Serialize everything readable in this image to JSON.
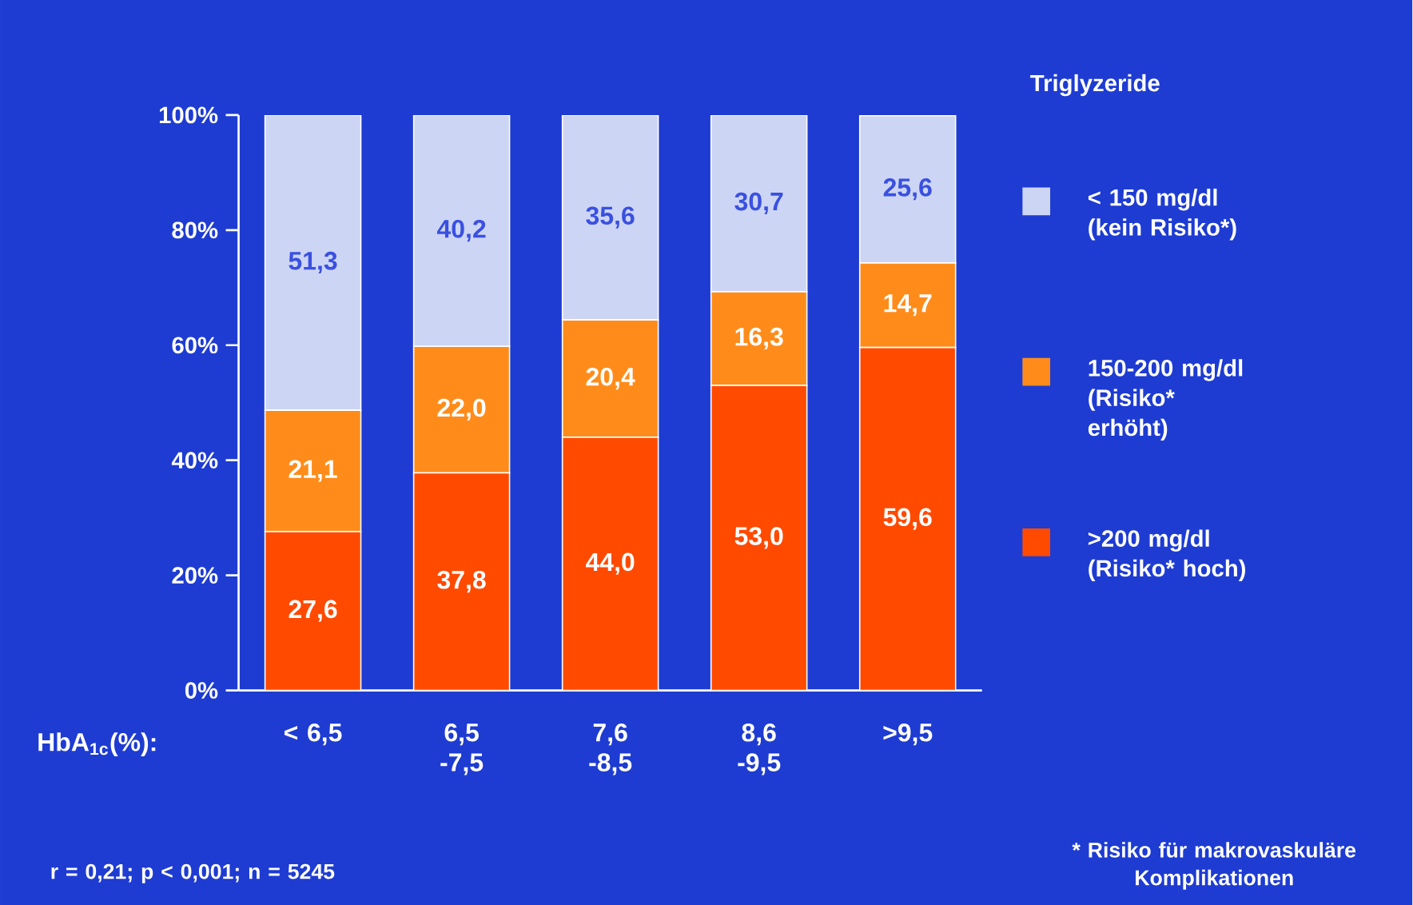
{
  "chart_data": {
    "type": "bar",
    "stacked": true,
    "xlabel": "HbA$_{1c}$(%):",
    "legend_title": "Triglyzeride",
    "legend": "right",
    "categories": [
      "< 6,5",
      "6,5 -7,5",
      "7,6 -8,5",
      "8,6 -9,5",
      ">9,5"
    ],
    "series": [
      {
        "name": ">200 mg/dl (Risiko* hoch)",
        "color": "#ff4a00",
        "values": [
          27.6,
          37.8,
          44.0,
          53.0,
          59.6
        ],
        "value_labels": [
          "27,6",
          "37,8",
          "44,0",
          "53,0",
          "59,6"
        ]
      },
      {
        "name": "150-200 mg/dl (Risiko* erhöht)",
        "color": "#ff8c1a",
        "values": [
          21.1,
          22.0,
          20.4,
          16.3,
          14.7
        ],
        "value_labels": [
          "21,1",
          "22,0",
          "20,4",
          "16,3",
          "14,7"
        ]
      },
      {
        "name": "< 150 mg/dl (kein Risiko*)",
        "color": "#cdd5f5",
        "values": [
          51.3,
          40.2,
          35.6,
          30.7,
          25.6
        ],
        "value_labels": [
          "51,3",
          "40,2",
          "35,6",
          "30,7",
          "25,6"
        ]
      }
    ],
    "ylim": [
      0,
      100
    ],
    "yticks": [
      {
        "value": 0,
        "label": "0%"
      },
      {
        "value": 20,
        "label": "20%"
      },
      {
        "value": 40,
        "label": "40%"
      },
      {
        "value": 60,
        "label": "60%"
      },
      {
        "value": 80,
        "label": "80%"
      },
      {
        "value": 100,
        "label": "100%"
      }
    ],
    "annotations": [
      "r = 0,21; p < 0,001; n = 5245",
      "* Risiko für makrovaskuläre Komplikationen"
    ]
  }
}
